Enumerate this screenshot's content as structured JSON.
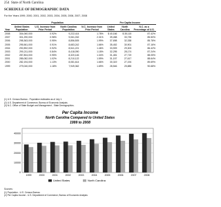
{
  "header": {
    "page": "254",
    "state": "State of North Carolina",
    "title": "SCHEDULE OF DEMOGRAPHIC DATA",
    "subtitle": "For the Years 1999, 2000, 2001, 2002, 2003, 2004, 2005, 2006, 2007, 2008"
  },
  "table": {
    "group_headers": [
      "Population",
      "Per Capita Income"
    ],
    "columns": [
      "Year",
      "United States Population",
      "U.S. Increase from Prior Period",
      "North Carolina Population",
      "N.C. Increase from Prior Period",
      "United States",
      "North Carolina",
      "N.C. as a Percentage of U.S."
    ],
    "rows": [
      [
        "2008",
        "304,060,000",
        "0.92%",
        "9,222,414",
        "1.78%",
        "$ 40,166",
        "$ 35,115",
        "87.42%"
      ],
      [
        "2007",
        "301,290,000",
        "0.98%",
        "9,061,032",
        "2.31%",
        "39,458",
        "33,735",
        "85.50%"
      ],
      [
        "2006",
        "298,363,000",
        "0.95%",
        "8,856,505",
        "1.99%",
        "37,698",
        "32,338",
        "85.78%"
      ],
      [
        "2005",
        "295,561,000",
        "0.91%",
        "8,683,242",
        "1.66%",
        "35,452",
        "30,901",
        "87.16%"
      ],
      [
        "2004",
        "292,892,000",
        "0.92%",
        "8,541,221",
        "1.46%",
        "33,909",
        "29,303",
        "86.42%"
      ],
      [
        "2003",
        "290,211,000",
        "0.84%",
        "8,418,090",
        "1.18%",
        "32,295",
        "28,174",
        "87.24%"
      ],
      [
        "2002",
        "287,804,000",
        "0.95%",
        "8,320,146",
        "1.34%",
        "31,481",
        "27,719",
        "88.05%"
      ],
      [
        "2001",
        "285,082,000",
        "1.02%",
        "8,210,122",
        "1.59%",
        "31,157",
        "27,617",
        "88.64%"
      ],
      [
        "2000",
        "282,194,000",
        "1.13%",
        "8,081,614",
        "1.66%",
        "30,319",
        "27,194",
        "89.69%"
      ],
      [
        "1999",
        "279,040,000",
        "1.18%",
        "7,949,362",
        "1.69%",
        "28,546",
        "25,885",
        "90.68%"
      ]
    ]
  },
  "notes": [
    "(1) U.S. Census Bureau - Population estimates as of July 1.",
    "(2) U.S. Department of Commerce, Bureau of Economic Analysis.",
    "(3) N.C. Office of State Budget and Management - State Demographics."
  ],
  "chart_data": {
    "type": "bar",
    "title": "Per Capita Income",
    "subtitle": "North Carolina Compared to United States",
    "subtitle2": "1999 to 2008",
    "categories": [
      "1999",
      "2000",
      "2001",
      "2002",
      "2003",
      "2004",
      "2005",
      "2006",
      "2007",
      "2008"
    ],
    "series": [
      {
        "name": "United States",
        "color": "#2b2b2b",
        "values": [
          28546,
          30319,
          31157,
          31481,
          32295,
          33909,
          35452,
          37698,
          39458,
          40166
        ]
      },
      {
        "name": "North Carolina",
        "color": "#a9a9a9",
        "values": [
          25885,
          27194,
          27617,
          27719,
          28174,
          29303,
          30901,
          32338,
          33735,
          35115
        ]
      }
    ],
    "ylim": [
      0,
      45000
    ],
    "yticks": [
      0,
      10000,
      20000,
      30000,
      40000
    ],
    "grid": true
  },
  "sources": [
    "Sources:",
    "(1) Population - U.S. Census Bureau",
    "(2) Per Capita Income - U.S. Department of Commerce, Bureau of Economic Analysis"
  ]
}
